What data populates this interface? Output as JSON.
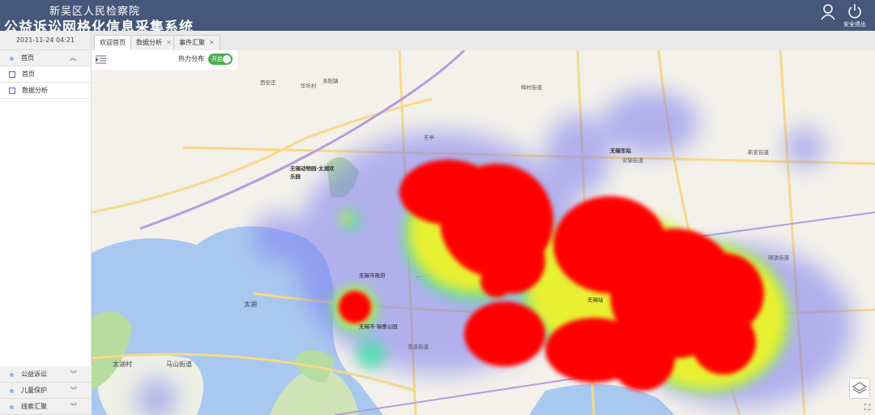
{
  "header": {
    "org": "新吴区人民检察院",
    "title": "公益诉讼网格化信息采集系统",
    "logout_label": "安全退出"
  },
  "sidebar": {
    "datetime": "2021-11-24 04:21",
    "groups": [
      {
        "label": "首页",
        "items": [
          {
            "label": "首页"
          },
          {
            "label": "数据分析"
          }
        ]
      },
      {
        "label": "公益诉讼"
      },
      {
        "label": "儿童保护"
      },
      {
        "label": "线索汇聚"
      }
    ]
  },
  "tabs": [
    {
      "label": "欢迎首页"
    },
    {
      "label": "数据分析"
    },
    {
      "label": "事件汇聚"
    }
  ],
  "toolbar": {
    "heatmap_label": "热力分布",
    "toggle_label": "开启",
    "toggle_on": true
  },
  "map": {
    "labels": [
      "洛阳镇",
      "西安庄",
      "华圻村",
      "无锡动物园·太湖欢乐园",
      "无锡东站",
      "无锡市政府",
      "无锡市·锡惠公园",
      "太湖",
      "马山街道",
      "太湖村",
      "东亭",
      "梅村街道",
      "硕放街道",
      "安镇街道",
      "新安街道",
      "雪浪街道",
      "无锡站"
    ],
    "colors": {
      "water": "#a9c8ef",
      "green": "#b6dca0",
      "road": "#f7d98a",
      "heat_hot": "#ff0000"
    }
  }
}
